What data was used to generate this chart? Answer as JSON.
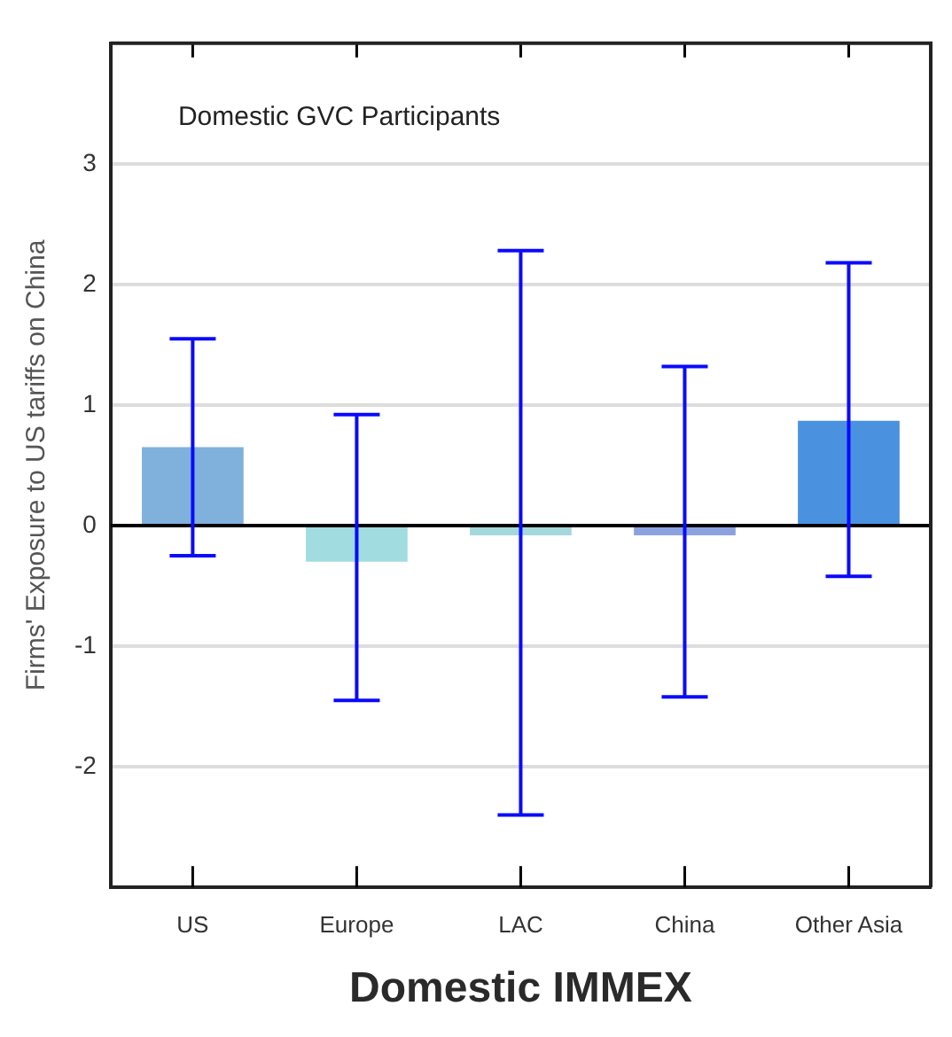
{
  "chart_data": {
    "type": "bar",
    "xlabel": "Domestic IMMEX",
    "ylabel": "Firms' Exposure to US tariffs on China",
    "annotations": [
      "Domestic GVC Participants"
    ],
    "categories": [
      "US",
      "Europe",
      "LAC",
      "China",
      "Other Asia"
    ],
    "values": [
      0.65,
      -0.3,
      -0.08,
      -0.08,
      0.87
    ],
    "colors": [
      "#80b0dc",
      "#a0dce0",
      "#a4d8dc",
      "#8ca2e0",
      "#4a92e0"
    ],
    "errors": [
      [
        -0.25,
        1.55
      ],
      [
        -1.45,
        0.92
      ],
      [
        -2.4,
        2.28
      ],
      [
        -1.42,
        1.32
      ],
      [
        -0.42,
        2.18
      ]
    ],
    "ylim": [
      -3,
      4
    ],
    "yticks": [
      -2,
      -1,
      0,
      1,
      2,
      3
    ],
    "grid": "y"
  }
}
